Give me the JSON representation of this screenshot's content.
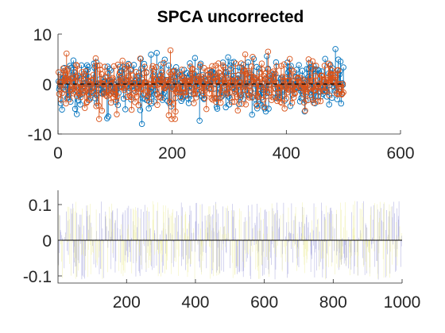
{
  "chart_data": [
    {
      "type": "stem",
      "title": "SPCA uncorrected",
      "xlabel": "",
      "ylabel": "",
      "xlim": [
        0,
        600
      ],
      "ylim": [
        -10,
        10
      ],
      "xticks": [
        0,
        200,
        400,
        600
      ],
      "yticks": [
        -10,
        0,
        10
      ],
      "n_points": 500,
      "baseline": 0,
      "baseline_style": "dashed",
      "grid": false,
      "legend": "none",
      "series": [
        {
          "color": "#0072BD",
          "marker": "circle",
          "std": 2.4,
          "y_range": [
            -8,
            7
          ]
        },
        {
          "color": "#D95319",
          "marker": "circle",
          "std": 2.4,
          "y_range": [
            -7,
            7
          ]
        }
      ]
    },
    {
      "type": "stem",
      "title": "",
      "xlabel": "",
      "ylabel": "",
      "xlim": [
        1,
        1000
      ],
      "ylim": [
        -0.12,
        0.14
      ],
      "xticks": [
        200,
        400,
        600,
        800,
        1000
      ],
      "yticks": [
        -0.1,
        0,
        0.1
      ],
      "ytick_labels": [
        "-0.1",
        "0",
        "0.1"
      ],
      "n_points": 1000,
      "baseline": 0,
      "grid": false,
      "legend": "none",
      "series": [
        {
          "color": "#9a9ad8",
          "marker": "none",
          "y_range": [
            -0.11,
            0.11
          ]
        },
        {
          "color": "#ecec9c",
          "marker": "none",
          "y_range": [
            -0.11,
            0.11
          ]
        }
      ]
    }
  ]
}
